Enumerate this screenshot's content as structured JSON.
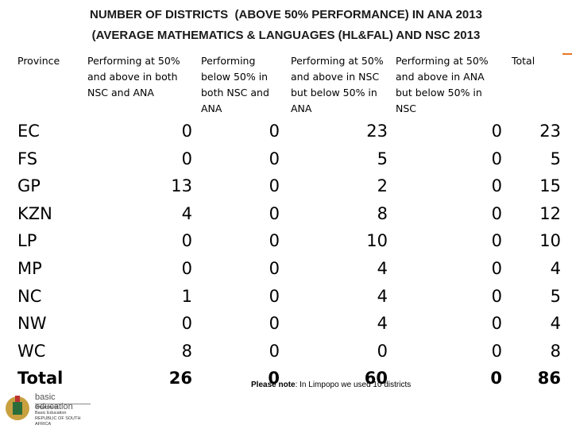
{
  "header": {
    "title": [
      "NUMBER OF DISTRICTS  (ABOVE 50% PERFORMANCE) IN ANA 2013",
      "(AVERAGE MATHEMATICS & LANGUAGES (HL&FAL) AND NSC 2013"
    ]
  },
  "table": {
    "columns": [
      "Province",
      "Performing at 50% and above in both NSC and ANA",
      "Performing below 50% in both NSC and ANA",
      "Performing at 50% and above in NSC but below 50% in ANA",
      "Performing at 50% and above in ANA but below 50% in NSC",
      "Total"
    ],
    "rows": [
      [
        "EC",
        0,
        0,
        23,
        0,
        23
      ],
      [
        "FS",
        0,
        0,
        5,
        0,
        5
      ],
      [
        "GP",
        13,
        0,
        2,
        0,
        15
      ],
      [
        "KZN",
        4,
        0,
        8,
        0,
        12
      ],
      [
        "LP",
        0,
        0,
        10,
        0,
        10
      ],
      [
        "MP",
        0,
        0,
        4,
        0,
        4
      ],
      [
        "NC",
        1,
        0,
        4,
        0,
        5
      ],
      [
        "NW",
        0,
        0,
        4,
        0,
        4
      ],
      [
        "WC",
        8,
        0,
        0,
        0,
        8
      ],
      [
        "Total",
        26,
        0,
        60,
        0,
        86
      ]
    ]
  },
  "footer": {
    "note_label": "Please note",
    "note": ": In Limpopo we used 10 districts"
  },
  "logo": {
    "name": "basic education",
    "lines": [
      "Department:",
      "Basic Education",
      "REPUBLIC OF SOUTH AFRICA"
    ]
  }
}
